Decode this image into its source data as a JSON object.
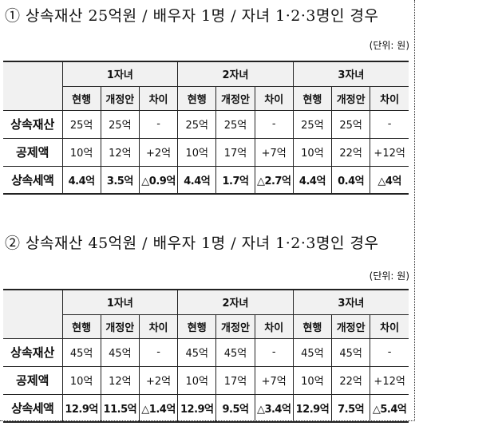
{
  "sections": [
    {
      "title": "① 상속재산 25억원 / 배우자 1명 / 자녀 1·2·3명인 경우",
      "unit": "(단위: 원)",
      "groups": [
        "1자녀",
        "2자녀",
        "3자녀"
      ],
      "subheaders": [
        "현행",
        "개정안",
        "차이"
      ],
      "rows": [
        {
          "label": "상속재산",
          "cells": [
            "25억",
            "25억",
            "-",
            "25억",
            "25억",
            "-",
            "25억",
            "25억",
            "-"
          ]
        },
        {
          "label": "공제액",
          "cells": [
            "10억",
            "12억",
            "+2억",
            "10억",
            "17억",
            "+7억",
            "10억",
            "22억",
            "+12억"
          ]
        },
        {
          "label": "상속세액",
          "cells": [
            "4.4억",
            "3.5억",
            "△0.9억",
            "4.4억",
            "1.7억",
            "△2.7억",
            "4.4억",
            "0.4억",
            "△4억"
          ]
        }
      ]
    },
    {
      "title": "② 상속재산 45억원 / 배우자 1명 / 자녀 1·2·3명인 경우",
      "unit": "(단위: 원)",
      "groups": [
        "1자녀",
        "2자녀",
        "3자녀"
      ],
      "subheaders": [
        "현행",
        "개정안",
        "차이"
      ],
      "rows": [
        {
          "label": "상속재산",
          "cells": [
            "45억",
            "45억",
            "-",
            "45억",
            "45억",
            "-",
            "45억",
            "45억",
            "-"
          ]
        },
        {
          "label": "공제액",
          "cells": [
            "10억",
            "12억",
            "+2억",
            "10억",
            "17억",
            "+7억",
            "10억",
            "22억",
            "+12억"
          ]
        },
        {
          "label": "상속세액",
          "cells": [
            "12.9억",
            "11.5억",
            "△1.4억",
            "12.9억",
            "9.5억",
            "△3.4억",
            "12.9억",
            "7.5억",
            "△5.4억"
          ]
        }
      ]
    }
  ]
}
